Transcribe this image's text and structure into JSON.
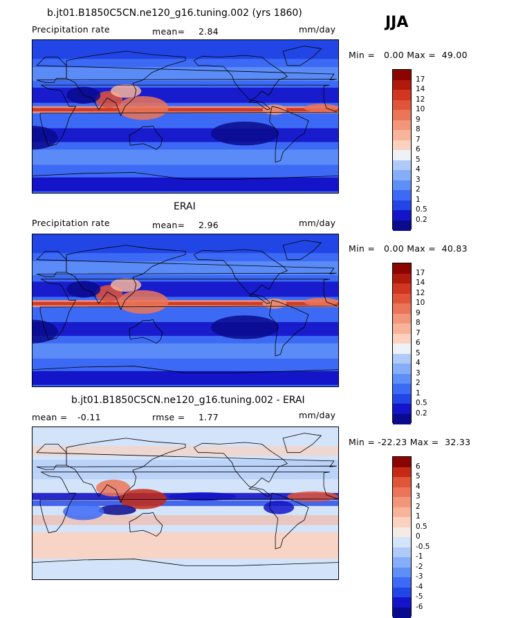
{
  "season": "JJA",
  "colors": {
    "precip": [
      "#0a0a8c",
      "#1414c8",
      "#2246e6",
      "#3d6af5",
      "#5d8ff7",
      "#86aef8",
      "#b0caf8",
      "#eef1f5",
      "#fbd2bf",
      "#f8b49a",
      "#f2967a",
      "#eb7558",
      "#e0553a",
      "#d03620",
      "#b01a0c",
      "#8a0500"
    ],
    "diff": [
      "#0a0a8c",
      "#1414c8",
      "#2246e6",
      "#3d6af5",
      "#5d8ff7",
      "#86aef8",
      "#b0caf8",
      "#d3e3fa",
      "#f4ece4",
      "#fbd2bf",
      "#f8b49a",
      "#f2967a",
      "#eb7558",
      "#e0553a",
      "#c42a15",
      "#8a0500"
    ]
  },
  "panels": [
    {
      "title": "b.jt01.B1850C5CN.ne120_g16.tuning.002 (yrs 1860)",
      "left_label": "Precipitation rate",
      "mean_label": "mean=",
      "mean_value": "2.84",
      "units": "mm/day",
      "minmax": "Min =   0.00 Max =  49.00",
      "colorbar_labels": [
        "17",
        "14",
        "12",
        "10",
        "9",
        "8",
        "7",
        "6",
        "5",
        "4",
        "3",
        "2",
        "1",
        "0.5",
        "0.2"
      ],
      "style": "precip"
    },
    {
      "title": "ERAI",
      "left_label": "Precipitation rate",
      "mean_label": "mean=",
      "mean_value": "2.96",
      "units": "mm/day",
      "minmax": "Min =   0.00 Max =  40.83",
      "colorbar_labels": [
        "17",
        "14",
        "12",
        "10",
        "9",
        "8",
        "7",
        "6",
        "5",
        "4",
        "3",
        "2",
        "1",
        "0.5",
        "0.2"
      ],
      "style": "precip"
    },
    {
      "title": "b.jt01.B1850C5CN.ne120_g16.tuning.002 - ERAI",
      "left_label": "mean =",
      "left_value": "-0.11",
      "mean_label": "rmse =",
      "mean_value": "1.77",
      "units": "mm/day",
      "minmax": "Min = -22.23 Max =  32.33",
      "colorbar_labels": [
        "6",
        "5",
        "4",
        "3",
        "2",
        "1",
        "0.5",
        "0",
        "-0.5",
        "-1",
        "-2",
        "-3",
        "-4",
        "-5",
        "-6"
      ],
      "style": "diff"
    }
  ]
}
